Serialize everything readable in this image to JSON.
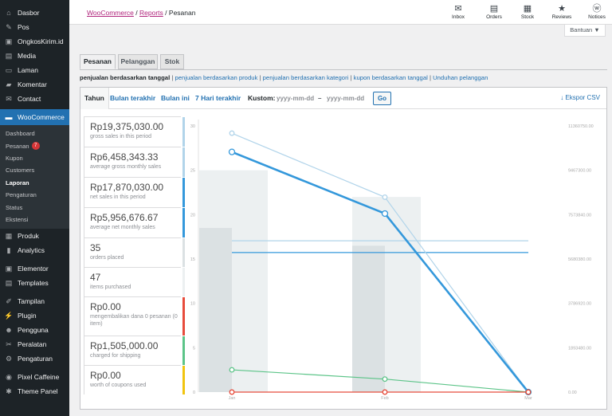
{
  "sidebar": {
    "items_top": [
      {
        "label": "Dasbor",
        "icon": "dashboard-icon",
        "glyph": "⌂"
      },
      {
        "label": "Pos",
        "icon": "pin-icon",
        "glyph": "✎"
      },
      {
        "label": "OngkosKirim.id",
        "icon": "box-icon",
        "glyph": "▣"
      },
      {
        "label": "Media",
        "icon": "media-icon",
        "glyph": "▤"
      },
      {
        "label": "Laman",
        "icon": "page-icon",
        "glyph": "▭"
      },
      {
        "label": "Komentar",
        "icon": "comment-icon",
        "glyph": "▰"
      },
      {
        "label": "Contact",
        "icon": "mail-icon",
        "glyph": "✉"
      }
    ],
    "woo": {
      "label": "WooCommerce",
      "icon": "woocommerce-icon",
      "glyph": "▬"
    },
    "woo_sub": [
      {
        "label": "Dashboard"
      },
      {
        "label": "Pesanan",
        "badge": "7"
      },
      {
        "label": "Kupon"
      },
      {
        "label": "Customers"
      },
      {
        "label": "Laporan",
        "current": true
      },
      {
        "label": "Pengaturan"
      },
      {
        "label": "Status"
      },
      {
        "label": "Ekstensi"
      }
    ],
    "items_bottom": [
      {
        "label": "Produk",
        "icon": "product-icon",
        "glyph": "▦"
      },
      {
        "label": "Analytics",
        "icon": "analytics-icon",
        "glyph": "▮"
      },
      {
        "label": "Elementor",
        "icon": "elementor-icon",
        "glyph": "▣"
      },
      {
        "label": "Templates",
        "icon": "templates-icon",
        "glyph": "▤"
      },
      {
        "label": "Tampilan",
        "icon": "appearance-icon",
        "glyph": "✐"
      },
      {
        "label": "Plugin",
        "icon": "plugin-icon",
        "glyph": "⚡"
      },
      {
        "label": "Pengguna",
        "icon": "users-icon",
        "glyph": "☻"
      },
      {
        "label": "Peralatan",
        "icon": "tools-icon",
        "glyph": "✂"
      },
      {
        "label": "Pengaturan",
        "icon": "settings-icon",
        "glyph": "⚙"
      },
      {
        "label": "Pixel Caffeine",
        "icon": "pixel-caffeine-icon",
        "glyph": "◉"
      },
      {
        "label": "Theme Panel",
        "icon": "theme-panel-icon",
        "glyph": "✱"
      }
    ]
  },
  "breadcrumb": {
    "root": "WooCommerce",
    "sep": "/",
    "reports": "Reports",
    "current": "Pesanan"
  },
  "toolbar": [
    {
      "label": "Inbox",
      "icon": "inbox-icon",
      "glyph": "✉"
    },
    {
      "label": "Orders",
      "icon": "orders-icon",
      "glyph": "▤"
    },
    {
      "label": "Stock",
      "icon": "stock-icon",
      "glyph": "▦"
    },
    {
      "label": "Reviews",
      "icon": "star-icon",
      "glyph": "★"
    },
    {
      "label": "Notices",
      "icon": "wordpress-icon",
      "glyph": "ⓦ"
    }
  ],
  "help": {
    "label": "Bantuan ▼"
  },
  "tabs": [
    {
      "label": "Pesanan",
      "active": true
    },
    {
      "label": "Pelanggan"
    },
    {
      "label": "Stok"
    }
  ],
  "report_links": {
    "current": "penjualan berdasarkan tanggal",
    "links": [
      "penjualan berdasarkan produk",
      "penjualan berdasarkan kategori",
      "kupon berdasarkan tanggal",
      "Unduhan pelanggan"
    ],
    "separator": " | "
  },
  "ranges": {
    "year": "Tahun",
    "last_month": "Bulan terakhir",
    "this_month": "Bulan ini",
    "last7": "7 Hari terakhir",
    "custom": "Kustom:",
    "from_placeholder": "yyyy-mm-dd",
    "dash": "–",
    "to_placeholder": "yyyy-mm-dd",
    "go": "Go",
    "export": "↓  Ekspor CSV"
  },
  "legend": [
    {
      "value": "Rp19,375,030.00",
      "label": "gross sales in this period",
      "color": "#b1d4ea"
    },
    {
      "value": "Rp6,458,343.33",
      "label": "average gross monthly sales",
      "color": "#b1d4ea"
    },
    {
      "value": "Rp17,870,030.00",
      "label": "net sales in this period",
      "color": "#3498db"
    },
    {
      "value": "Rp5,956,676.67",
      "label": "average net monthly sales",
      "color": "#3498db"
    },
    {
      "value": "35",
      "label": "orders placed",
      "color": "#dbe1e3"
    },
    {
      "value": "47",
      "label": "items purchased",
      "color": "#ecf0f1"
    },
    {
      "value": "Rp0.00",
      "label": "mengembalikan dana 0 pesanan (0 item)",
      "color": "#e74c3c"
    },
    {
      "value": "Rp1,505,000.00",
      "label": "charged for shipping",
      "color": "#5cc488"
    },
    {
      "value": "Rp0.00",
      "label": "worth of coupons used",
      "color": "#f1c40f"
    }
  ],
  "chart_data": {
    "type": "bar",
    "categories": [
      "Jan",
      "Feb",
      "Mar"
    ],
    "left_axis": {
      "ticks": [
        "0",
        "5",
        "10",
        "15",
        "20",
        "25",
        "30"
      ],
      "ylim": [
        0,
        30
      ]
    },
    "right_axis": {
      "ticks": [
        "0.00",
        "1893480.00",
        "3786920.00",
        "5680380.00",
        "7573840.00",
        "9467300.00",
        "11360750.00"
      ],
      "ylim": [
        0,
        11360750
      ]
    },
    "series": [
      {
        "name": "orders placed",
        "kind": "bar",
        "axis": "left",
        "values": [
          18.5,
          16.5,
          0
        ],
        "color": "#dbe1e3"
      },
      {
        "name": "items purchased",
        "kind": "bar",
        "axis": "left",
        "values": [
          25,
          22,
          0
        ],
        "color": "#ecf0f1"
      },
      {
        "name": "gross sales in this period",
        "kind": "line",
        "axis": "right",
        "values": [
          11050000,
          8320000,
          0
        ],
        "color": "#b1d4ea"
      },
      {
        "name": "net sales in this period",
        "kind": "line",
        "axis": "right",
        "values": [
          10250000,
          7620000,
          0
        ],
        "color": "#3498db"
      },
      {
        "name": "average gross monthly sales",
        "kind": "hline",
        "axis": "right",
        "value": 6458343.33,
        "color": "#b1d4ea"
      },
      {
        "name": "average net monthly sales",
        "kind": "hline",
        "axis": "right",
        "value": 5956676.67,
        "color": "#3498db"
      },
      {
        "name": "charged for shipping",
        "kind": "line",
        "axis": "right",
        "values": [
          950000,
          555000,
          0
        ],
        "color": "#5cc488"
      },
      {
        "name": "mengembalikan dana",
        "kind": "line",
        "axis": "right",
        "values": [
          0,
          0,
          0
        ],
        "color": "#e74c3c"
      }
    ]
  }
}
